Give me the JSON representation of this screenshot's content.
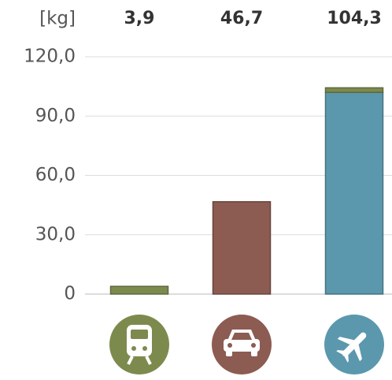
{
  "chart_data": {
    "type": "bar",
    "stacked": true,
    "y_label": "[kg]",
    "categories": [
      null,
      null,
      null
    ],
    "series": [
      {
        "color": "#5b98ad",
        "values": [
          null,
          null,
          102.0
        ]
      },
      {
        "color": "#8c5b52",
        "values": [
          null,
          46.7,
          null
        ]
      },
      {
        "color": "#7d8a4e",
        "values": [
          3.9,
          null,
          2.3
        ]
      }
    ],
    "totals": [
      3.9,
      46.7,
      104.3
    ],
    "total_labels": [
      "3,9",
      "46,7",
      "104,3"
    ],
    "ylim": [
      0,
      120
    ],
    "yticks": [
      0,
      {
        "value": 30,
        "label": "30,0"
      },
      {
        "value": 60,
        "label": "60,0"
      },
      {
        "value": 90,
        "label": "90,0"
      },
      {
        "value": 120,
        "label": "120,0"
      }
    ],
    "grid": true
  }
}
